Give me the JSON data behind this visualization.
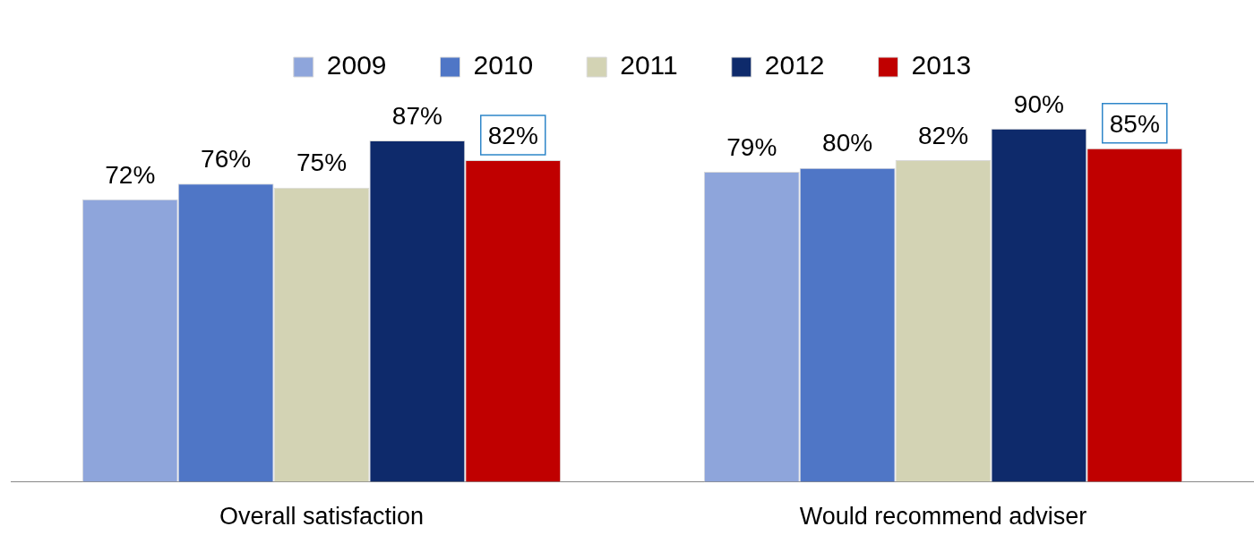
{
  "chart_data": {
    "type": "bar",
    "categories": [
      "Overall satisfaction",
      "Would recommend adviser"
    ],
    "series": [
      {
        "name": "2009",
        "color": "#8ea5db",
        "values": [
          72,
          79
        ],
        "value_labels": [
          "72%",
          "79%"
        ]
      },
      {
        "name": "2010",
        "color": "#4f76c6",
        "values": [
          76,
          80
        ],
        "value_labels": [
          "76%",
          "80%"
        ]
      },
      {
        "name": "2011",
        "color": "#d3d3b4",
        "values": [
          75,
          82
        ],
        "value_labels": [
          "75%",
          "82%"
        ]
      },
      {
        "name": "2012",
        "color": "#0e2a6b",
        "values": [
          87,
          90
        ],
        "value_labels": [
          "87%",
          "90%"
        ]
      },
      {
        "name": "2013",
        "color": "#c00000",
        "values": [
          82,
          85
        ],
        "value_labels": [
          "82%",
          "85%"
        ]
      }
    ],
    "legend": "top",
    "grid": false
  }
}
